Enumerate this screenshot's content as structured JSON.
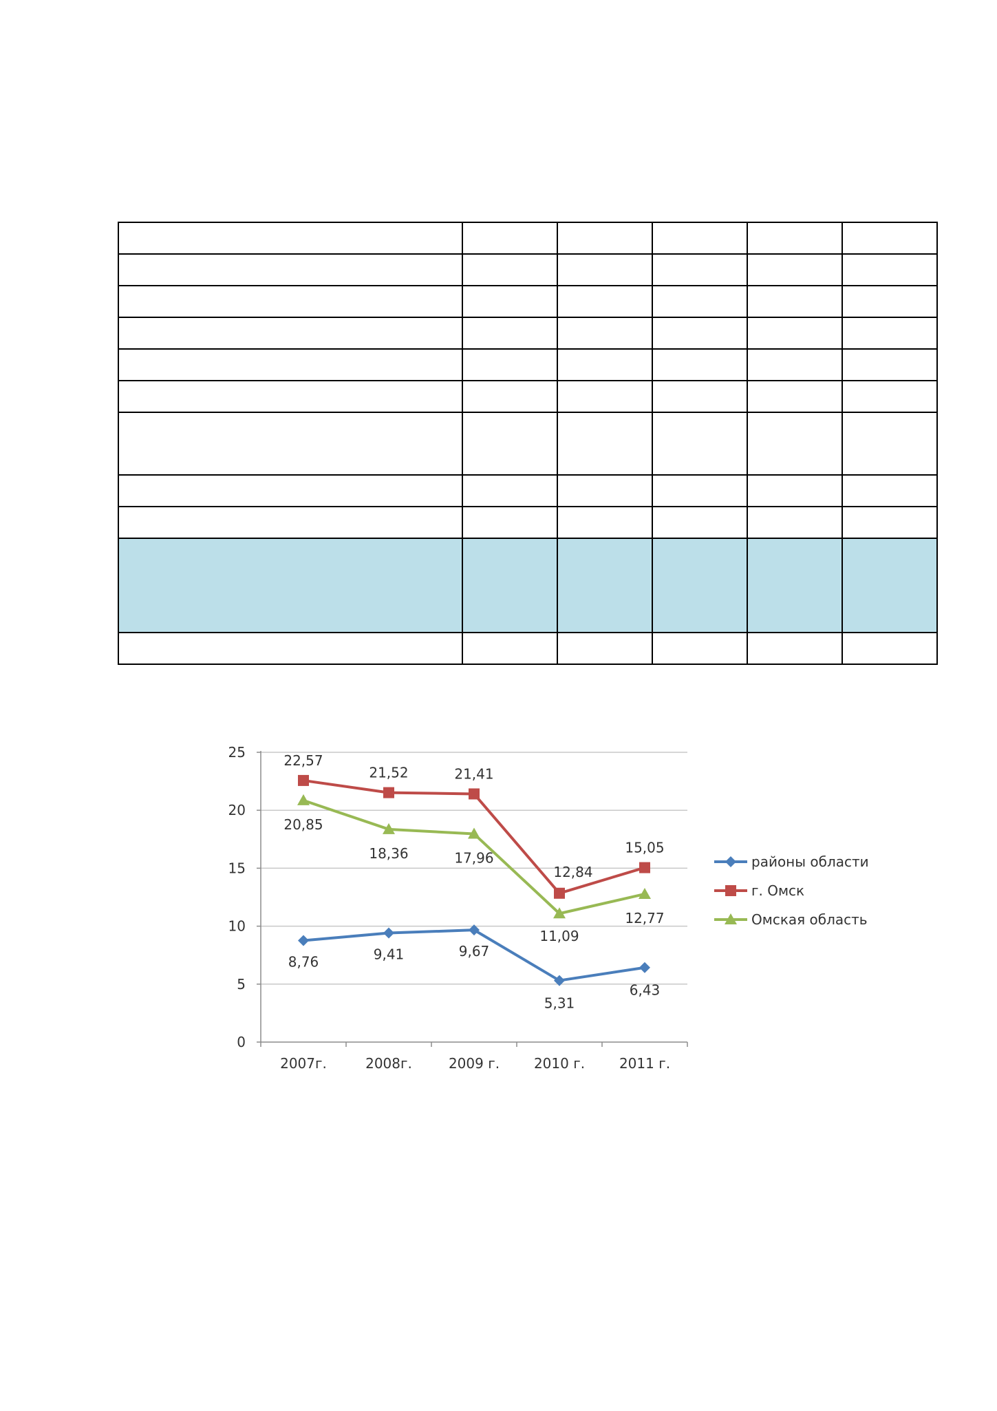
{
  "table": {
    "highlight_color": "#bcdfe9",
    "columns": 6,
    "rows": [
      {
        "highlight": false
      },
      {
        "highlight": false
      },
      {
        "highlight": false
      },
      {
        "highlight": false
      },
      {
        "highlight": false
      },
      {
        "highlight": false
      },
      {
        "highlight": false
      },
      {
        "highlight": false
      },
      {
        "highlight": false
      },
      {
        "highlight": true
      },
      {
        "highlight": false
      }
    ]
  },
  "chart_data": {
    "type": "line",
    "categories": [
      "2007г.",
      "2008г.",
      "2009 г.",
      "2010 г.",
      "2011 г."
    ],
    "ylim": [
      0,
      25
    ],
    "yticks": [
      "0",
      "5",
      "10",
      "15",
      "20",
      "25"
    ],
    "grid": true,
    "legend": "right",
    "series": [
      {
        "name": "районы области",
        "color": "#4a7ebb",
        "marker": "diamond",
        "values": [
          8.76,
          9.41,
          9.67,
          5.31,
          6.43
        ],
        "labels": [
          "8,76",
          "9,41",
          "9,67",
          "5,31",
          "6,43"
        ]
      },
      {
        "name": "г. Омск",
        "color": "#be4b48",
        "marker": "square",
        "values": [
          22.57,
          21.52,
          21.41,
          12.84,
          15.05
        ],
        "labels": [
          "22,57",
          "21,52",
          "21,41",
          "12,84",
          "15,05"
        ]
      },
      {
        "name": "Омская область",
        "color": "#98b954",
        "marker": "triangle",
        "values": [
          20.85,
          18.36,
          17.96,
          11.09,
          12.77
        ],
        "labels": [
          "20,85",
          "18,36",
          "17,96",
          "11,09",
          "12,77"
        ]
      }
    ]
  }
}
